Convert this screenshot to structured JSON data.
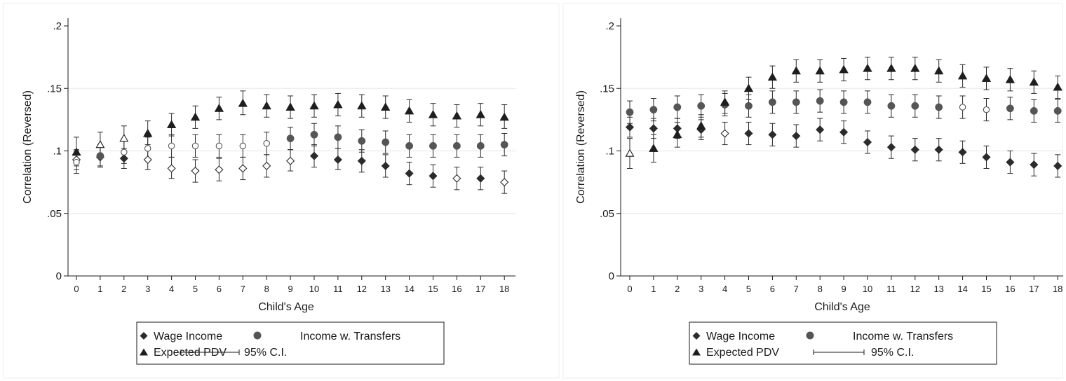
{
  "chart_data": [
    {
      "type": "scatter",
      "title": "",
      "xlabel": "Child's Age",
      "ylabel": "Correlation (Reversed)",
      "xlim": [
        0,
        18
      ],
      "ylim": [
        0,
        0.2
      ],
      "x_ticks": [
        "0",
        "1",
        "2",
        "3",
        "4",
        "5",
        "6",
        "7",
        "8",
        "9",
        "10",
        "11",
        "12",
        "13",
        "14",
        "15",
        "16",
        "17",
        "18"
      ],
      "y_ticks": [
        {
          "value": 0,
          "label": "0"
        },
        {
          "value": 0.05,
          "label": ".05"
        },
        {
          "value": 0.1,
          "label": ".1"
        },
        {
          "value": 0.15,
          "label": ".15"
        },
        {
          "value": 0.2,
          "label": ".2"
        }
      ],
      "grid": true,
      "legend_placement": "bottom",
      "x": [
        0,
        1,
        2,
        3,
        4,
        5,
        6,
        7,
        8,
        9,
        10,
        11,
        12,
        13,
        14,
        15,
        16,
        17,
        18
      ],
      "series": [
        {
          "name": "Wage Income",
          "marker": "diamond",
          "values": [
            0.093,
            0.095,
            0.094,
            0.093,
            0.086,
            0.084,
            0.085,
            0.086,
            0.088,
            0.092,
            0.096,
            0.093,
            0.092,
            0.088,
            0.082,
            0.08,
            0.078,
            0.078,
            0.075
          ],
          "ci_low": [
            0.085,
            0.088,
            0.086,
            0.085,
            0.078,
            0.075,
            0.076,
            0.077,
            0.079,
            0.084,
            0.087,
            0.085,
            0.083,
            0.079,
            0.073,
            0.071,
            0.069,
            0.069,
            0.066
          ],
          "ci_high": [
            0.101,
            0.103,
            0.102,
            0.101,
            0.095,
            0.093,
            0.094,
            0.095,
            0.097,
            0.101,
            0.105,
            0.102,
            0.101,
            0.097,
            0.091,
            0.089,
            0.087,
            0.087,
            0.084
          ],
          "hollow": [
            true,
            false,
            false,
            true,
            true,
            true,
            true,
            true,
            true,
            true,
            false,
            false,
            false,
            false,
            false,
            false,
            true,
            false,
            true
          ]
        },
        {
          "name": "Income w. Transfers",
          "marker": "circle",
          "values": [
            0.091,
            0.096,
            0.099,
            0.102,
            0.104,
            0.104,
            0.104,
            0.104,
            0.106,
            0.11,
            0.113,
            0.111,
            0.108,
            0.107,
            0.104,
            0.104,
            0.104,
            0.104,
            0.105
          ],
          "ci_low": [
            0.082,
            0.087,
            0.09,
            0.093,
            0.095,
            0.095,
            0.095,
            0.095,
            0.097,
            0.101,
            0.104,
            0.102,
            0.099,
            0.098,
            0.095,
            0.095,
            0.095,
            0.095,
            0.096
          ],
          "ci_high": [
            0.1,
            0.105,
            0.108,
            0.111,
            0.113,
            0.113,
            0.113,
            0.113,
            0.115,
            0.119,
            0.122,
            0.12,
            0.117,
            0.116,
            0.113,
            0.113,
            0.113,
            0.113,
            0.114
          ],
          "hollow": [
            true,
            false,
            true,
            true,
            true,
            true,
            true,
            true,
            true,
            false,
            false,
            false,
            false,
            false,
            false,
            false,
            false,
            false,
            false
          ]
        },
        {
          "name": "Expected PDV",
          "marker": "triangle",
          "values": [
            0.099,
            0.105,
            0.11,
            0.114,
            0.121,
            0.127,
            0.134,
            0.138,
            0.136,
            0.135,
            0.136,
            0.137,
            0.136,
            0.135,
            0.132,
            0.129,
            0.128,
            0.129,
            0.127
          ],
          "ci_low": [
            0.088,
            0.095,
            0.1,
            0.105,
            0.112,
            0.118,
            0.125,
            0.129,
            0.127,
            0.126,
            0.127,
            0.128,
            0.127,
            0.126,
            0.123,
            0.12,
            0.119,
            0.12,
            0.118
          ],
          "ci_high": [
            0.111,
            0.115,
            0.12,
            0.124,
            0.13,
            0.136,
            0.143,
            0.148,
            0.145,
            0.144,
            0.145,
            0.146,
            0.145,
            0.144,
            0.141,
            0.138,
            0.137,
            0.138,
            0.137
          ],
          "hollow": [
            false,
            true,
            true,
            false,
            false,
            false,
            false,
            false,
            false,
            false,
            false,
            false,
            false,
            false,
            false,
            false,
            false,
            false,
            false
          ]
        }
      ],
      "legend": {
        "items": [
          "Wage Income",
          "Income w. Transfers",
          "Expected PDV",
          "95% C.I."
        ]
      }
    },
    {
      "type": "scatter",
      "title": "",
      "xlabel": "Child's Age",
      "ylabel": "Correlation (Reversed)",
      "xlim": [
        0,
        18
      ],
      "ylim": [
        0,
        0.2
      ],
      "x_ticks": [
        "0",
        "1",
        "2",
        "3",
        "4",
        "5",
        "6",
        "7",
        "8",
        "9",
        "10",
        "11",
        "12",
        "13",
        "14",
        "15",
        "16",
        "17",
        "18"
      ],
      "y_ticks": [
        {
          "value": 0,
          "label": "0"
        },
        {
          "value": 0.05,
          "label": ".05"
        },
        {
          "value": 0.1,
          "label": ".1"
        },
        {
          "value": 0.15,
          "label": ".15"
        },
        {
          "value": 0.2,
          "label": ".2"
        }
      ],
      "grid": true,
      "legend_placement": "bottom",
      "x": [
        0,
        1,
        2,
        3,
        4,
        5,
        6,
        7,
        8,
        9,
        10,
        11,
        12,
        13,
        14,
        15,
        16,
        17,
        18
      ],
      "series": [
        {
          "name": "Wage Income",
          "marker": "diamond",
          "values": [
            0.119,
            0.118,
            0.118,
            0.117,
            0.114,
            0.114,
            0.113,
            0.112,
            0.117,
            0.115,
            0.107,
            0.103,
            0.101,
            0.101,
            0.099,
            0.095,
            0.091,
            0.089,
            0.088
          ],
          "ci_low": [
            0.111,
            0.11,
            0.11,
            0.109,
            0.105,
            0.105,
            0.104,
            0.103,
            0.108,
            0.106,
            0.098,
            0.094,
            0.092,
            0.092,
            0.09,
            0.086,
            0.082,
            0.08,
            0.079
          ],
          "ci_high": [
            0.127,
            0.126,
            0.126,
            0.125,
            0.123,
            0.123,
            0.122,
            0.121,
            0.126,
            0.124,
            0.116,
            0.112,
            0.11,
            0.11,
            0.108,
            0.104,
            0.1,
            0.098,
            0.097
          ],
          "hollow": [
            false,
            false,
            false,
            false,
            true,
            false,
            false,
            false,
            false,
            false,
            false,
            false,
            false,
            false,
            false,
            false,
            false,
            false,
            false
          ]
        },
        {
          "name": "Income w. Transfers",
          "marker": "circle",
          "values": [
            0.131,
            0.133,
            0.135,
            0.136,
            0.137,
            0.136,
            0.139,
            0.139,
            0.14,
            0.139,
            0.139,
            0.136,
            0.136,
            0.135,
            0.135,
            0.133,
            0.134,
            0.132,
            0.132
          ],
          "ci_low": [
            0.122,
            0.124,
            0.126,
            0.127,
            0.128,
            0.127,
            0.13,
            0.13,
            0.131,
            0.13,
            0.13,
            0.127,
            0.127,
            0.126,
            0.126,
            0.124,
            0.125,
            0.123,
            0.123
          ],
          "ci_high": [
            0.14,
            0.142,
            0.144,
            0.145,
            0.146,
            0.145,
            0.148,
            0.148,
            0.149,
            0.148,
            0.148,
            0.145,
            0.145,
            0.144,
            0.144,
            0.142,
            0.143,
            0.141,
            0.141
          ],
          "hollow": [
            false,
            false,
            false,
            false,
            false,
            false,
            false,
            false,
            false,
            false,
            false,
            false,
            false,
            false,
            true,
            true,
            false,
            false,
            false
          ]
        },
        {
          "name": "Expected PDV",
          "marker": "triangle",
          "values": [
            0.098,
            0.102,
            0.113,
            0.12,
            0.139,
            0.15,
            0.159,
            0.164,
            0.164,
            0.165,
            0.166,
            0.166,
            0.166,
            0.164,
            0.16,
            0.158,
            0.157,
            0.155,
            0.151
          ],
          "ci_low": [
            0.086,
            0.091,
            0.103,
            0.111,
            0.13,
            0.141,
            0.15,
            0.155,
            0.155,
            0.156,
            0.157,
            0.157,
            0.157,
            0.155,
            0.151,
            0.149,
            0.148,
            0.146,
            0.142
          ],
          "ci_high": [
            0.11,
            0.113,
            0.123,
            0.129,
            0.148,
            0.159,
            0.168,
            0.173,
            0.173,
            0.174,
            0.175,
            0.175,
            0.175,
            0.173,
            0.169,
            0.167,
            0.166,
            0.164,
            0.16
          ],
          "hollow": [
            true,
            false,
            false,
            false,
            false,
            false,
            false,
            false,
            false,
            false,
            false,
            false,
            false,
            false,
            false,
            false,
            false,
            false,
            false
          ]
        }
      ],
      "legend": {
        "items": [
          "Wage Income",
          "Income w. Transfers",
          "Expected PDV",
          "95% C.I."
        ]
      }
    }
  ]
}
